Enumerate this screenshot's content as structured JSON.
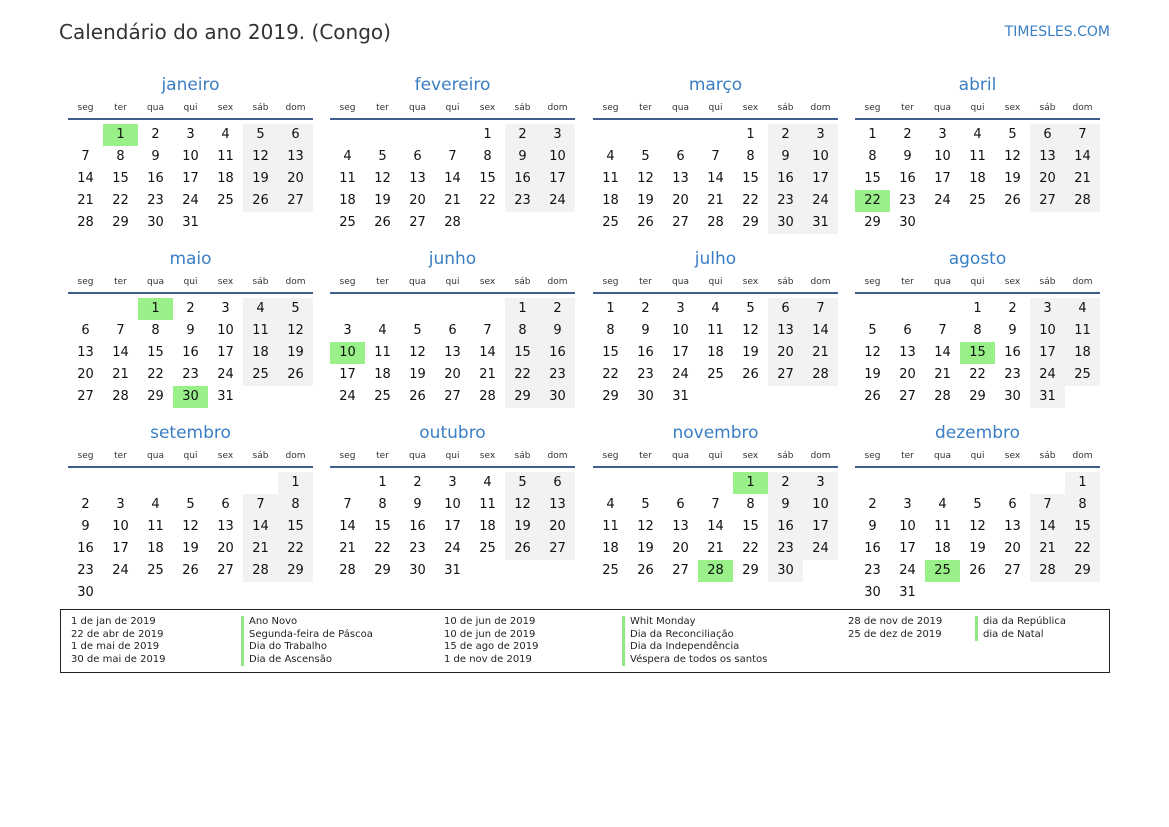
{
  "title": "Calendário do ano 2019. (Congo)",
  "brand": "TIMESLES.COM",
  "weekdays": [
    "seg",
    "ter",
    "qua",
    "qui",
    "sex",
    "sáb",
    "dom"
  ],
  "colors": {
    "accent": "#3a7ec4",
    "holiday": "#99f089",
    "weekend": "#f2f2f2"
  },
  "months": [
    {
      "name": "janeiro",
      "first_weekday": 1,
      "days": 31
    },
    {
      "name": "fevereiro",
      "first_weekday": 4,
      "days": 28
    },
    {
      "name": "março",
      "first_weekday": 4,
      "days": 31
    },
    {
      "name": "abril",
      "first_weekday": 0,
      "days": 30
    },
    {
      "name": "maio",
      "first_weekday": 2,
      "days": 31
    },
    {
      "name": "junho",
      "first_weekday": 5,
      "days": 30
    },
    {
      "name": "julho",
      "first_weekday": 0,
      "days": 31
    },
    {
      "name": "agosto",
      "first_weekday": 3,
      "days": 31
    },
    {
      "name": "setembro",
      "first_weekday": 6,
      "days": 30
    },
    {
      "name": "outubro",
      "first_weekday": 1,
      "days": 31
    },
    {
      "name": "novembro",
      "first_weekday": 4,
      "days": 30
    },
    {
      "name": "dezembro",
      "first_weekday": 6,
      "days": 31
    }
  ],
  "holiday_days": [
    [
      1,
      1
    ],
    [
      4,
      22
    ],
    [
      5,
      1
    ],
    [
      5,
      30
    ],
    [
      6,
      10
    ],
    [
      8,
      15
    ],
    [
      11,
      1
    ],
    [
      11,
      28
    ],
    [
      12,
      25
    ]
  ],
  "legend": [
    {
      "date": "1 de jan de 2019",
      "name": "Ano Novo"
    },
    {
      "date": "22 de abr de 2019",
      "name": "Segunda-feira de Páscoa"
    },
    {
      "date": "1 de mai de 2019",
      "name": "Dia do Trabalho"
    },
    {
      "date": "30 de mai de 2019",
      "name": "Dia de Ascensão"
    },
    {
      "date": "10 de jun de 2019",
      "name": "Whit Monday"
    },
    {
      "date": "10 de jun de 2019",
      "name": "Dia da Reconciliação"
    },
    {
      "date": "15 de ago de 2019",
      "name": "Dia da Independência"
    },
    {
      "date": "1 de nov de 2019",
      "name": "Véspera de todos os santos"
    },
    {
      "date": "28 de nov de 2019",
      "name": "dia da República"
    },
    {
      "date": "25 de dez de 2019",
      "name": "dia de Natal"
    }
  ]
}
